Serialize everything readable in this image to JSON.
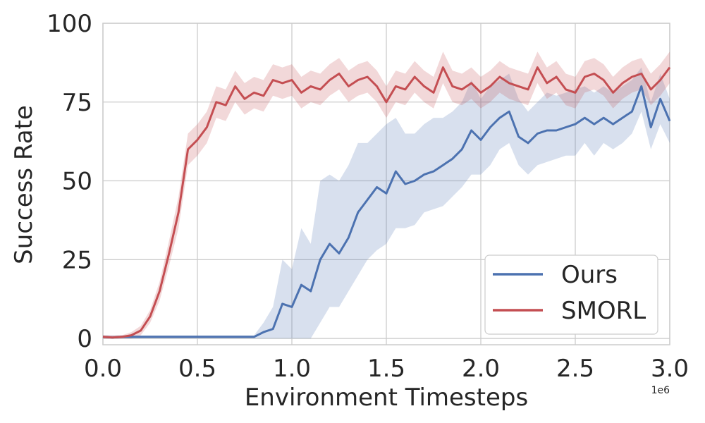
{
  "chart_data": {
    "type": "line",
    "xlabel": "Environment Timesteps",
    "ylabel": "Success Rate",
    "x_offset_label": "1e6",
    "xlim": [
      0,
      3.0
    ],
    "ylim": [
      -2,
      100
    ],
    "x_ticks": [
      0.0,
      0.5,
      1.0,
      1.5,
      2.0,
      2.5,
      3.0
    ],
    "x_tick_labels": [
      "0.0",
      "0.5",
      "1.0",
      "1.5",
      "2.0",
      "2.5",
      "3.0"
    ],
    "y_ticks": [
      0,
      25,
      50,
      75,
      100
    ],
    "y_tick_labels": [
      "0",
      "25",
      "50",
      "75",
      "100"
    ],
    "grid": true,
    "legend_position": "lower-right",
    "x": [
      0.0,
      0.05,
      0.1,
      0.15,
      0.2,
      0.25,
      0.3,
      0.35,
      0.4,
      0.45,
      0.5,
      0.55,
      0.6,
      0.65,
      0.7,
      0.75,
      0.8,
      0.85,
      0.9,
      0.95,
      1.0,
      1.05,
      1.1,
      1.15,
      1.2,
      1.25,
      1.3,
      1.35,
      1.4,
      1.45,
      1.5,
      1.55,
      1.6,
      1.65,
      1.7,
      1.75,
      1.8,
      1.85,
      1.9,
      1.95,
      2.0,
      2.05,
      2.1,
      2.15,
      2.2,
      2.25,
      2.3,
      2.35,
      2.4,
      2.45,
      2.5,
      2.55,
      2.6,
      2.65,
      2.7,
      2.75,
      2.8,
      2.85,
      2.9,
      2.95,
      3.0
    ],
    "series": [
      {
        "name": "Ours",
        "color": "#4c72b0",
        "values": [
          0.5,
          0.3,
          0.5,
          0.5,
          0.5,
          0.5,
          0.5,
          0.5,
          0.5,
          0.5,
          0.5,
          0.5,
          0.5,
          0.5,
          0.5,
          0.5,
          0.5,
          2,
          3,
          11,
          10,
          17,
          15,
          25,
          30,
          27,
          32,
          40,
          44,
          48,
          46,
          53,
          49,
          50,
          52,
          53,
          55,
          57,
          60,
          66,
          63,
          67,
          70,
          72,
          64,
          62,
          65,
          66,
          66,
          67,
          68,
          70,
          68,
          70,
          68,
          70,
          72,
          80,
          67,
          76,
          69
        ],
        "lower": [
          0,
          0,
          0,
          0,
          0,
          0,
          0,
          0,
          0,
          0,
          0,
          0,
          0,
          0,
          0,
          0,
          0,
          0,
          0,
          0,
          0,
          0,
          0,
          5,
          10,
          10,
          15,
          20,
          25,
          28,
          30,
          35,
          35,
          36,
          40,
          41,
          42,
          45,
          48,
          52,
          52,
          55,
          60,
          62,
          55,
          52,
          55,
          56,
          57,
          58,
          58,
          62,
          58,
          62,
          60,
          62,
          65,
          72,
          60,
          68,
          62
        ],
        "upper": [
          1,
          1,
          1,
          1,
          1,
          1,
          1,
          1,
          1,
          1,
          1,
          1,
          1,
          1,
          1,
          1,
          1,
          5,
          10,
          25,
          22,
          35,
          30,
          50,
          52,
          50,
          55,
          62,
          62,
          65,
          68,
          70,
          65,
          65,
          68,
          70,
          70,
          72,
          75,
          82,
          76,
          80,
          82,
          84,
          76,
          72,
          75,
          78,
          77,
          78,
          79,
          80,
          78,
          80,
          78,
          80,
          82,
          86,
          75,
          84,
          76
        ]
      },
      {
        "name": "SMORL",
        "color": "#c44e52",
        "values": [
          0.5,
          0.3,
          0.5,
          1,
          2.5,
          7,
          15,
          27,
          40,
          60,
          63,
          67,
          75,
          74,
          80,
          76,
          78,
          77,
          82,
          81,
          82,
          78,
          80,
          79,
          82,
          84,
          80,
          82,
          83,
          80,
          75,
          80,
          79,
          83,
          80,
          78,
          86,
          80,
          79,
          81,
          78,
          80,
          83,
          81,
          80,
          79,
          86,
          81,
          83,
          79,
          78,
          83,
          84,
          82,
          78,
          81,
          83,
          84,
          79,
          82,
          86
        ],
        "lower": [
          0,
          0,
          0,
          0,
          1,
          5,
          12,
          23,
          35,
          55,
          58,
          62,
          70,
          69,
          75,
          71,
          73,
          72,
          77,
          76,
          77,
          73,
          75,
          74,
          77,
          79,
          75,
          77,
          78,
          75,
          70,
          75,
          74,
          78,
          75,
          73,
          81,
          75,
          74,
          76,
          73,
          75,
          78,
          76,
          75,
          74,
          81,
          76,
          78,
          74,
          73,
          78,
          79,
          77,
          73,
          76,
          78,
          79,
          74,
          77,
          81
        ],
        "upper": [
          1,
          1,
          1,
          2,
          4,
          9,
          18,
          31,
          45,
          65,
          68,
          72,
          80,
          79,
          85,
          81,
          83,
          82,
          87,
          86,
          87,
          83,
          85,
          84,
          87,
          89,
          85,
          87,
          88,
          85,
          80,
          85,
          84,
          88,
          85,
          83,
          91,
          85,
          84,
          86,
          83,
          85,
          88,
          86,
          85,
          84,
          91,
          86,
          88,
          84,
          83,
          88,
          89,
          87,
          83,
          86,
          88,
          89,
          84,
          87,
          91
        ]
      }
    ]
  }
}
